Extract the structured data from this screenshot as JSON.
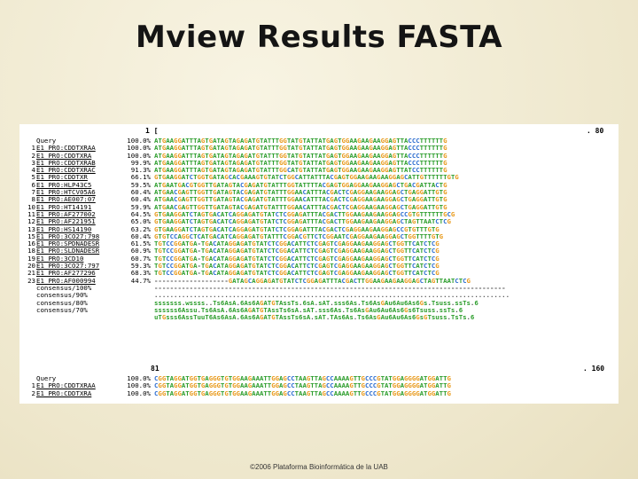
{
  "slide": {
    "title": "Mview Results FASTA",
    "footer": "©2006 Plataforma Bioinformática de la UAB"
  },
  "colors": {
    "A": "#2e9e2e",
    "T": "#2e9e2e",
    "G": "#e89a1c",
    "C": "#2f6fd0",
    "cons_match": "#2e9e2e",
    "dash": "#555555"
  },
  "block1": {
    "ruler": {
      "start": "1 [",
      "end": ". 80"
    },
    "rows": [
      {
        "num": "",
        "name": "Query",
        "link": false,
        "pct": "100.0%",
        "seq": "ATGAAGGATTTAGTGATAGTAGAGATGTATTTGGTATGTATTATGAGTGGAAGAAGAAGGAGTTACCCTTTTTTG"
      },
      {
        "num": "1",
        "name": "E1_PRO:CDDTXRAA",
        "link": true,
        "pct": "100.0%",
        "seq": "ATGAAGGATTTAGTGATAGTAGAGATGTATTTGGTATGTATTATGAGTGGAAGAAGAAGGAGTTACCCTTTTTTG"
      },
      {
        "num": "2",
        "name": "E1_PRO:CDDTXRA",
        "link": true,
        "pct": "100.0%",
        "seq": "ATGAAGGATTTAGTGATAGTAGAGATGTATTTGGTATGTATTATGAGTGGAAGAAGAAGGAGTTACCCTTTTTTG"
      },
      {
        "num": "3",
        "name": "E1_PRO:CDDTXRAB",
        "link": true,
        "pct": "99.9%",
        "seq": "ATGAAGGATTTAGTGATAGTAGAGATGTATTTGGTATGTATTATGAGTGGAAGAAGAAGGAGTTACCCTTTTTTG"
      },
      {
        "num": "4",
        "name": "E1_PRO:CDDTXRAC",
        "link": true,
        "pct": "91.3%",
        "seq": "ATGAAGGATTTAGTGATAGTAGAGATGTATTTGGCATGTATTATGAGTGGAAGAAGAAGGAGTTATCCTTTTTTG"
      },
      {
        "num": "5",
        "name": "E1_PRO:CDDTXR",
        "link": true,
        "pct": "66.1%",
        "seq": "GTGAAGGATCTGGTGATAGCACGAAAGTGTATCTGGCATTATTTACGAGTGGAAGAAGAAGGAGCATTGTTTTTTGTG"
      },
      {
        "num": "6",
        "name": "E1_PRO:HLP43C5",
        "link": true,
        "pct": "59.5%",
        "seq": "ATGAATGACGTGGTTGATAGTACGAGATGTATTTGGTATTTTACGAGTGGAGGAAGAAGGAGCTGACGATTACTG"
      },
      {
        "num": "7",
        "name": "E1_PRO:HTCV05A6",
        "link": true,
        "pct": "60.4%",
        "seq": "ATGAACGAGTTGGTTGATAGTACGAGATGTATTTGGAACATTTACGACTCGAGGAAGAAGGAGCTGAGGATTGTG"
      },
      {
        "num": "8",
        "name": "E1_PRO:AE007:07",
        "link": true,
        "pct": "60.4%",
        "seq": "ATGAACGAGTTGGTTGATAGTACGAGATGTATTTGGAACATTTACGACTCGAGGAAGAAGGAGCTGAGGATTGTG"
      },
      {
        "num": "10",
        "name": "E1_PRO:HT14191",
        "link": true,
        "pct": "59.9%",
        "seq": "ATGAACGAGTTGGTTGATAGTACGAGATGTATTTGGAACATTTACGACTCGAGGAAGAAGGAGCTGAGGATTGTG"
      },
      {
        "num": "11",
        "name": "E1_PRO:AF277002",
        "link": true,
        "pct": "64.5%",
        "seq": "GTGAAGGATCTAGTGACATCAGGAGATGTATCTCGGAGATTTACGACTTGGAAGAAGAAGGAGCCGTGTTTTTTGCG"
      },
      {
        "num": "12",
        "name": "E1_PRO:AF221951",
        "link": true,
        "pct": "65.0%",
        "seq": "GTGAAGGATCTAGTGACATCAGGAGATGTATCTCGGAGATTTACGACTTGGAAGAAGAAGGAGCTAGTTAATCTCG"
      },
      {
        "num": "13",
        "name": "E1_PRO:HS14190",
        "link": true,
        "pct": "63.2%",
        "seq": "GTGAAGGATCTAGTGACATCAGGAGATGTATCTCGGAGATTTACGACTCGAGGAAGAAGGAGCCGTGTTTGTG"
      },
      {
        "num": "15",
        "name": "E1_PRO:3CO27:798",
        "link": true,
        "pct": "60.4%",
        "seq": "GTGTCCAGGCTCATGACATCAGGAGATGTATTTCGGACGTTCTCGGAATCGAGGAAGAAGGAGCTGGTTTTGTG"
      },
      {
        "num": "16",
        "name": "E1_PRO:SPDNADESR",
        "link": true,
        "pct": "61.5%",
        "seq": "TGTCCGGATGA-TGACATAGGAGATGTATCTCGGACATTCTCGAGTCGAGGAAGAAGGAGCTGGTTCATCTCG"
      },
      {
        "num": "18",
        "name": "E1_PRO:SLDNADESR",
        "link": true,
        "pct": "60.9%",
        "seq": "TGTCCGGATGA-TGACATAGGAGATGTATCTCGGACATTCTCGAGTCGAGGAAGAAGGAGCTGGTTCATCTCG"
      },
      {
        "num": "19",
        "name": "E1_PRO:3CD10",
        "link": true,
        "pct": "60.7%",
        "seq": "TGTCCGGATGA-TGACATAGGAGATGTATCTCGGACATTCTCGAGTCGAGGAAGAAGGAGCTGGTTCATCTCG"
      },
      {
        "num": "20",
        "name": "E1_PRO:3CO27:797",
        "link": true,
        "pct": "59.3%",
        "seq": "TGTCCGGATGA-TGACATAGGAGATGTATCTCGGACATTCTCGAGTCGAGGAAGAAGGAGCTGGTTCATCTCG"
      },
      {
        "num": "21",
        "name": "E1_PRO:AF277296",
        "link": true,
        "pct": "68.3%",
        "seq": "TGTCCGGATGA-TGACATAGGAGATGTATCTCGGACATTCTCGAGTCGAGGAAGAAGGAGCTGGTTCATCTCG"
      },
      {
        "num": "23",
        "name": "E1_PRO:AF000994",
        "link": true,
        "pct": "44.7%",
        "seq": "-------------------GATAGCAGGAGATGTATCTCGGAGATTTACGACTTGGAAGAAGAAGGAGCTAGTTAATCTCG"
      },
      {
        "num": "",
        "name": "consensus/100%",
        "link": false,
        "pct": "",
        "seq": "------------------------------------------------------------------------------------------"
      },
      {
        "num": "",
        "name": "consensus/90%",
        "link": false,
        "pct": "",
        "seq": "..........................................................................................."
      },
      {
        "num": "",
        "name": "consensus/80%",
        "link": false,
        "pct": "",
        "seq": "sssssss.wssss..Ts6AsA.6As6AGATGTAssTs.6sA.sAT.sss6As.Ts6AsGAu6Au6As6Gs.Tsuss.ssTs.6"
      },
      {
        "num": "",
        "name": "consensus/70%",
        "link": false,
        "pct": "",
        "seq": "ssssss6Assu.Ts6AsA.6As6AGATGTAssTs6sA.sAT.sss6As.Ts6AsGAu6Au6As6Gs6Tsuss.ssTs.6"
      },
      {
        "num": "",
        "name": "",
        "link": false,
        "pct": "",
        "seq": "uTGsss6AssTuuT6As6AsA.6As6AGATGTAssTs6sA.sAT.TAs6As.Ts6AsGAu6Au6As6GsGTsuss.TsTs.6"
      }
    ]
  },
  "block2": {
    "ruler": {
      "start": "81",
      "end": ". 160"
    },
    "rows": [
      {
        "num": "",
        "name": "Query",
        "link": false,
        "pct": "100.0%",
        "seq": "CGGTAGGATGGTGAGGGTGTGGAAGAAATTGGAGCCTAAGTTAGCCAAAAGTTGCCCGTATGGAGGGGATGGATTG"
      },
      {
        "num": "1",
        "name": "E1_PRO:CDDTXRAA",
        "link": true,
        "pct": "100.0%",
        "seq": "CGGTAGGATGGTGAGGGTGTGGAAGAAATTGGAGCCTAAGTTAGCCAAAAGTTGCCCGTATGGAGGGGATGGATTG"
      },
      {
        "num": "2",
        "name": "E1_PRO:CDDTXRA",
        "link": true,
        "pct": "100.0%",
        "seq": "CGGTAGGATGGTGAGGGTGTGGAAGAAATTGGAGCCTAAGTTAGCCAAAAGTTGCCCGTATGGAGGGGATGGATTG"
      }
    ]
  }
}
